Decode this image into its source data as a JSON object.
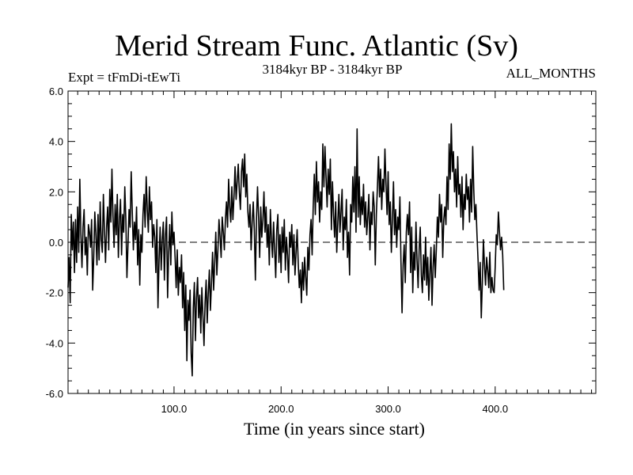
{
  "chart_data": {
    "type": "line",
    "title": "Merid Stream Func. Atlantic (Sv)",
    "subtitle_left": "Expt = tFmDi-tEwTi",
    "subtitle_center": "3184kyr BP - 3184kyr BP",
    "subtitle_right": "ALL_MONTHS",
    "xlabel": "Time (in years since start)",
    "ylabel": "",
    "xlim": [
      1,
      494
    ],
    "ylim": [
      -6,
      6
    ],
    "xticks": [
      100,
      200,
      300,
      400
    ],
    "xtick_labels": [
      "100.0",
      "200.0",
      "300.0",
      "400.0"
    ],
    "yticks": [
      -6,
      -4,
      -2,
      0,
      2,
      4,
      6
    ],
    "ytick_labels": [
      "-6.0",
      "-4.0",
      "-2.0",
      "0.0",
      "2.0",
      "4.0",
      "6.0"
    ],
    "zero_line": true,
    "grid": false,
    "series": [
      {
        "name": "Merid Stream Func. Atlantic",
        "x_start": 1,
        "x_step": 1,
        "values": [
          -1.8,
          -0.6,
          -2.4,
          1.1,
          -0.3,
          0.8,
          -1.2,
          0.9,
          -0.8,
          1.4,
          -0.4,
          2.5,
          0.3,
          -1.0,
          0.6,
          1.3,
          -0.5,
          0.2,
          -1.3,
          0.7,
          0.4,
          -0.2,
          0.9,
          -1.9,
          -0.6,
          1.2,
          0.3,
          -0.9,
          1.1,
          -0.7,
          1.6,
          0.1,
          -0.4,
          1.9,
          0.5,
          -0.8,
          0.6,
          1.4,
          -0.3,
          2.1,
          0.8,
          2.9,
          1.0,
          -0.2,
          1.5,
          0.3,
          1.9,
          -0.6,
          0.9,
          1.7,
          -0.5,
          1.1,
          0.4,
          2.2,
          0.9,
          -1.4,
          -0.1,
          1.3,
          0.6,
          2.8,
          1.2,
          -0.3,
          0.8,
          0.1,
          1.4,
          -0.9,
          0.5,
          -1.7,
          0.3,
          -0.4,
          1.1,
          1.9,
          0.6,
          2.6,
          1.3,
          0.4,
          2.2,
          0.9,
          1.6,
          -0.2,
          0.7,
          0.2,
          -1.2,
          0.9,
          -2.6,
          -0.7,
          0.6,
          -1.1,
          0.1,
          0.8,
          -1.5,
          0.3,
          1.0,
          -2.2,
          -0.4,
          0.7,
          -0.9,
          1.2,
          -0.1,
          0.4,
          -0.6,
          -1.8,
          -0.3,
          -2.1,
          -1.0,
          -1.6,
          -0.5,
          -2.6,
          -1.2,
          -3.5,
          -1.7,
          -4.7,
          -2.3,
          -3.1,
          -1.9,
          -4.4,
          -5.3,
          -2.6,
          -1.6,
          -3.9,
          -2.2,
          -1.4,
          -3.0,
          -2.1,
          -3.6,
          -1.8,
          -2.9,
          -4.1,
          -2.4,
          -1.5,
          -3.2,
          -2.0,
          -1.1,
          -2.7,
          -1.6,
          -0.4,
          -1.9,
          -0.8,
          0.4,
          -1.3,
          -0.3,
          0.9,
          0.2,
          -0.6,
          1.0,
          0.4,
          -0.3,
          0.9,
          1.6,
          0.6,
          2.5,
          1.4,
          0.8,
          2.2,
          0.9,
          1.8,
          3.0,
          1.7,
          2.4,
          3.1,
          2.0,
          1.3,
          2.8,
          3.3,
          2.2,
          3.5,
          1.8,
          2.7,
          1.2,
          0.6,
          1.5,
          -0.3,
          0.8,
          1.6,
          0.5,
          -1.5,
          0.9,
          2.2,
          1.0,
          -0.6,
          1.4,
          0.2,
          0.9,
          2.0,
          0.4,
          1.4,
          -0.2,
          0.7,
          -0.9,
          1.3,
          0.1,
          -0.6,
          0.8,
          -0.3,
          -1.4,
          0.5,
          1.1,
          -0.8,
          0.3,
          -1.2,
          0.6,
          -0.4,
          0.9,
          -1.1,
          0.2,
          -0.5,
          -1.6,
          0.4,
          -0.2,
          0.7,
          -0.9,
          0.3,
          -1.3,
          -0.4,
          0.5,
          -0.8,
          -1.8,
          -1.1,
          -2.4,
          -0.8,
          -1.9,
          -0.6,
          -1.4,
          -2.1,
          -0.2,
          -1.1,
          0.3,
          0.9,
          -0.5,
          1.4,
          2.7,
          1.1,
          3.2,
          1.6,
          2.4,
          0.8,
          2.0,
          1.3,
          3.9,
          2.2,
          3.8,
          2.6,
          1.4,
          2.9,
          1.9,
          3.3,
          0.5,
          2.4,
          1.1,
          0.2,
          1.6,
          -0.4,
          0.8,
          1.9,
          0.4,
          1.2,
          2.1,
          -0.3,
          1.0,
          0.5,
          1.7,
          -0.6,
          0.4,
          -1.3,
          1.5,
          0.8,
          2.6,
          1.2,
          3.0,
          0.4,
          4.5,
          1.0,
          2.6,
          0.7,
          1.8,
          1.1,
          2.3,
          0.6,
          1.6,
          0.3,
          1.0,
          1.9,
          -0.3,
          1.2,
          0.7,
          2.0,
          1.4,
          -0.9,
          1.1,
          2.2,
          3.4,
          1.8,
          2.9,
          1.3,
          2.5,
          2.0,
          3.7,
          2.3,
          1.1,
          2.8,
          0.7,
          1.6,
          -0.4,
          0.9,
          2.4,
          0.3,
          1.3,
          -0.2,
          1.0,
          0.5,
          1.8,
          -0.8,
          -2.8,
          -0.9,
          -0.1,
          -1.6,
          0.4,
          1.1,
          0.3,
          1.6,
          -1.2,
          0.6,
          -2.0,
          -0.4,
          -1.1,
          0.8,
          -0.7,
          -1.8,
          -0.3,
          0.6,
          -1.3,
          -2.0,
          -0.5,
          -1.5,
          0.2,
          -1.7,
          -0.6,
          -2.3,
          -1.2,
          -0.2,
          -2.5,
          -1.0,
          -0.1,
          -1.4,
          -0.3,
          1.0,
          0.2,
          1.9,
          0.8,
          1.5,
          -0.6,
          0.9,
          1.4,
          0.7,
          2.6,
          1.3,
          3.9,
          2.5,
          4.7,
          2.8,
          3.6,
          2.0,
          2.9,
          1.4,
          3.4,
          1.9,
          2.3,
          1.0,
          2.6,
          0.5,
          1.9,
          1.3,
          2.7,
          1.7,
          2.2,
          0.8,
          2.5,
          1.2,
          3.8,
          2.1,
          0.9,
          1.5,
          0.3,
          -0.7,
          -1.9,
          -0.8,
          -3.0,
          -1.6,
          0.1,
          -0.9,
          -1.7,
          -0.6,
          -1.1,
          -1.8,
          -0.4,
          -2.0,
          -1.4,
          -1.9,
          -2.0,
          -1.0,
          0.3,
          -0.1,
          1.2,
          0.4,
          -0.3,
          0.2,
          -0.5,
          -1.9
        ]
      }
    ]
  }
}
